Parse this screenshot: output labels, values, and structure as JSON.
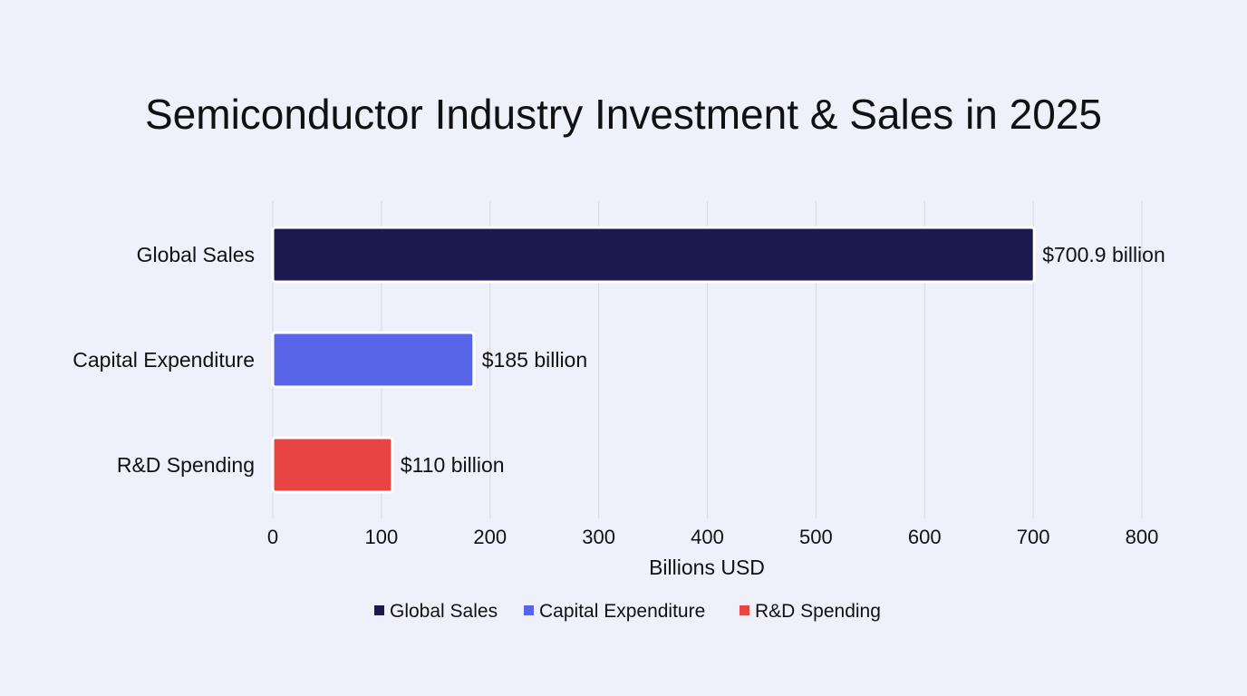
{
  "chart_data": {
    "type": "bar",
    "orientation": "horizontal",
    "title": "Semiconductor Industry Investment & Sales in 2025",
    "xlabel": "Billions USD",
    "ylabel": "",
    "xlim": [
      0,
      800
    ],
    "x_ticks": [
      0,
      100,
      200,
      300,
      400,
      500,
      600,
      700,
      800
    ],
    "categories": [
      "Global Sales",
      "Capital Expenditure",
      "R&D Spending"
    ],
    "values": [
      700.9,
      185,
      110
    ],
    "value_labels": [
      "$700.9 billion",
      "$185 billion",
      "$110 billion"
    ],
    "colors": [
      "#1a1a4e",
      "#5865e8",
      "#e84444"
    ],
    "grid": "vertical",
    "legend": {
      "placement": "bottom-center",
      "entries": [
        "Global Sales",
        "Capital Expenditure",
        "R&D Spending"
      ]
    }
  }
}
